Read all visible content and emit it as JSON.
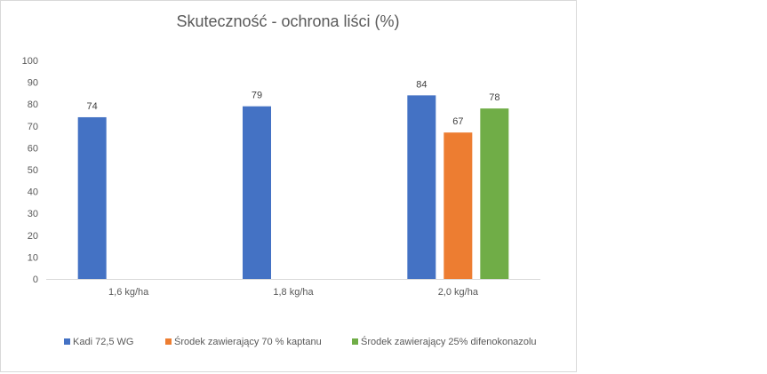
{
  "chart_data": {
    "type": "bar",
    "title": "Skuteczność - ochrona liści (%)",
    "xlabel": "",
    "ylabel": "",
    "categories": [
      "1,6 kg/ha",
      "1,8 kg/ha",
      "2,0 kg/ha"
    ],
    "series": [
      {
        "name": "Kadi 72,5 WG",
        "color": "#4472C4",
        "values": [
          74,
          79,
          84
        ]
      },
      {
        "name": "Środek zawierający 70 % kaptanu",
        "color": "#ED7D31",
        "values": [
          null,
          null,
          67
        ]
      },
      {
        "name": "Środek zawierający 25% difenokonazolu",
        "color": "#70AD47",
        "values": [
          null,
          null,
          78
        ]
      }
    ],
    "ylim": [
      0,
      100
    ],
    "yticks": [
      0,
      10,
      20,
      30,
      40,
      50,
      60,
      70,
      80,
      90,
      100
    ],
    "grid": false,
    "legend_position": "bottom",
    "data_labels": true
  }
}
